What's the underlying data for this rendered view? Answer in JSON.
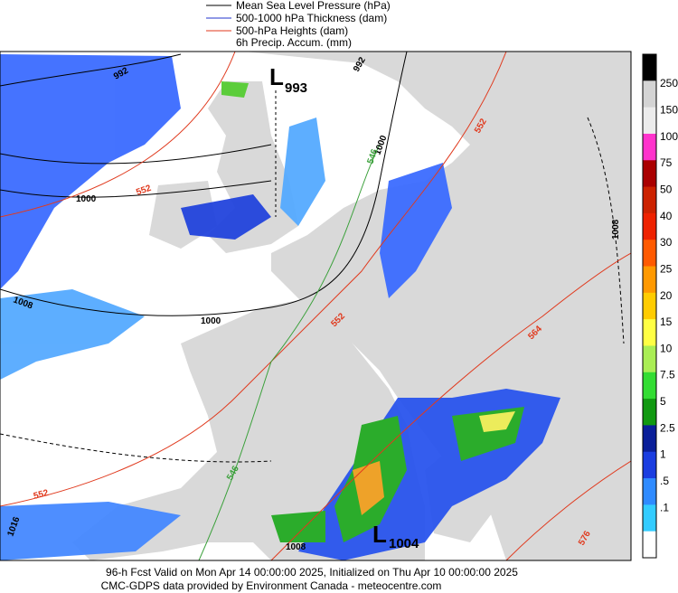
{
  "legend": {
    "items": [
      {
        "label": "Mean Sea Level Pressure (hPa)"
      },
      {
        "label": "500-1000 hPa Thickness (dam)"
      },
      {
        "label": "500-hPa Heights (dam)"
      },
      {
        "label": "6h Precip. Accum. (mm)"
      }
    ]
  },
  "color_scale": {
    "labels": [
      "250",
      "150",
      "100",
      "75",
      "50",
      "40",
      "30",
      "25",
      "20",
      "15",
      "10",
      "7.5",
      "5",
      "2.5",
      "1",
      ".5",
      ".1"
    ]
  },
  "map": {
    "lows": [
      {
        "symbol": "L",
        "value": "993"
      },
      {
        "symbol": "L",
        "value": "1004"
      }
    ],
    "isobar_labels": [
      "992",
      "992",
      "1000",
      "1008",
      "1000",
      "1000",
      "1008",
      "1016",
      "1008"
    ],
    "height_labels": [
      "552",
      "552",
      "552",
      "564",
      "552",
      "576"
    ],
    "thickness_labels": [
      "546",
      "546"
    ]
  },
  "footer": {
    "line1": "96-h Fcst Valid on Mon Apr 14 00:00:00 2025, Initialized on Thu Apr 10 00:00:00 2025",
    "line2": "CMC-GDPS data provided by Environment Canada - meteocentre.com"
  }
}
